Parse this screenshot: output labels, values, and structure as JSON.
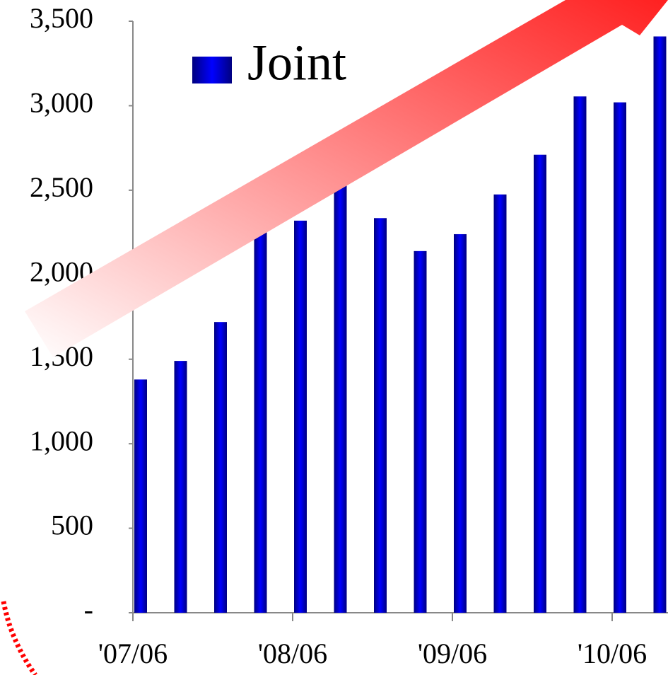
{
  "chart_data": {
    "type": "bar",
    "legend": "Joint",
    "color": "#0000ff",
    "categories": [
      "'07/06",
      null,
      null,
      null,
      "'08/06",
      null,
      null,
      null,
      "'09/06",
      null,
      null,
      null,
      "'10/06",
      null
    ],
    "values": [
      1380,
      1490,
      1720,
      2260,
      2320,
      2560,
      2335,
      2140,
      2240,
      2475,
      2710,
      3055,
      3020,
      3410
    ],
    "ylim": [
      0,
      3500
    ],
    "yticks": [
      {
        "value": 0,
        "label": "-"
      },
      500,
      {
        "value": 1000,
        "label": "1,000"
      },
      {
        "value": 1500,
        "label": "1,500"
      },
      {
        "value": 2000,
        "label": "2,000"
      },
      {
        "value": 2500,
        "label": "2,500"
      },
      {
        "value": 3000,
        "label": "3,000"
      },
      {
        "value": 3500,
        "label": "3,500"
      }
    ],
    "legend_position": "upper left",
    "grid": false
  }
}
